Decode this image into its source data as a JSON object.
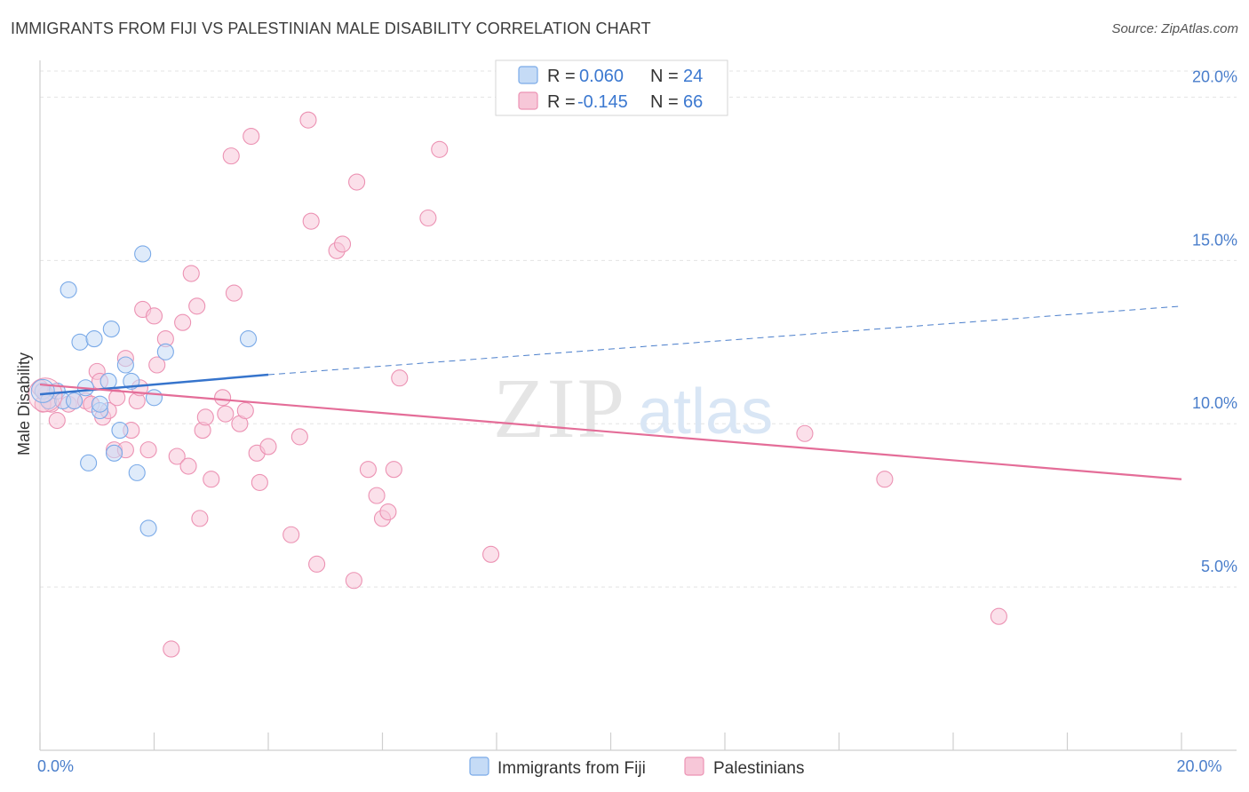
{
  "title": "IMMIGRANTS FROM FIJI VS PALESTINIAN MALE DISABILITY CORRELATION CHART",
  "source": "Source: ZipAtlas.com",
  "chart_data": {
    "type": "scatter",
    "title": "IMMIGRANTS FROM FIJI VS PALESTINIAN MALE DISABILITY CORRELATION CHART",
    "xlabel": "",
    "ylabel": "Male Disability",
    "xlim": [
      0,
      20
    ],
    "ylim": [
      0,
      20.8
    ],
    "x_tick_labels": [
      {
        "value": 0,
        "label": "0.0%"
      },
      {
        "value": 20,
        "label": "20.0%"
      }
    ],
    "x_minor_ticks": [
      0,
      2,
      4,
      6,
      8,
      10,
      12,
      14,
      16,
      18,
      20
    ],
    "y_ticks": [
      {
        "value": 5,
        "label": "5.0%"
      },
      {
        "value": 10,
        "label": "10.0%"
      },
      {
        "value": 15,
        "label": "15.0%"
      },
      {
        "value": 20,
        "label": "20.0%"
      }
    ],
    "legend": [
      {
        "series": "Immigrants from Fiji",
        "r_label": "R =",
        "r_value": "0.060",
        "n_label": "N =",
        "n_value": "24"
      },
      {
        "series": "Palestinians",
        "r_label": "R =",
        "r_value": "-0.145",
        "n_label": "N =",
        "n_value": "66"
      }
    ],
    "series": [
      {
        "name": "Immigrants from Fiji",
        "color": "#7aaae8",
        "fill": "#c5dbf6",
        "trend": {
          "x0": 0,
          "y0": 10.9,
          "x1": 4,
          "y1": 11.5,
          "dash_x1": 20,
          "dash_y1": 13.6
        },
        "points": [
          [
            0.05,
            11.0
          ],
          [
            0.15,
            10.7
          ],
          [
            0.3,
            11.0
          ],
          [
            0.4,
            10.7
          ],
          [
            0.5,
            14.1
          ],
          [
            0.7,
            12.5
          ],
          [
            0.8,
            11.1
          ],
          [
            0.85,
            8.8
          ],
          [
            0.95,
            12.6
          ],
          [
            1.05,
            10.4
          ],
          [
            1.2,
            11.3
          ],
          [
            1.25,
            12.9
          ],
          [
            1.3,
            9.1
          ],
          [
            1.4,
            9.8
          ],
          [
            1.5,
            11.8
          ],
          [
            1.6,
            11.3
          ],
          [
            1.7,
            8.5
          ],
          [
            1.8,
            15.2
          ],
          [
            1.9,
            6.8
          ],
          [
            2.0,
            10.8
          ],
          [
            2.2,
            12.2
          ],
          [
            3.65,
            12.6
          ],
          [
            0.6,
            10.7
          ],
          [
            1.05,
            10.6
          ]
        ]
      },
      {
        "name": "Palestinians",
        "color": "#ec92b3",
        "fill": "#f7c7d8",
        "trend": {
          "x0": 0,
          "y0": 11.2,
          "x1": 20,
          "y1": 8.3
        },
        "points": [
          [
            0.1,
            10.9
          ],
          [
            0.2,
            10.6
          ],
          [
            0.3,
            10.1
          ],
          [
            0.5,
            10.6
          ],
          [
            0.6,
            10.7
          ],
          [
            0.8,
            10.7
          ],
          [
            0.9,
            10.6
          ],
          [
            1.0,
            11.6
          ],
          [
            1.05,
            11.3
          ],
          [
            1.1,
            10.2
          ],
          [
            1.2,
            10.4
          ],
          [
            1.3,
            9.2
          ],
          [
            1.35,
            10.8
          ],
          [
            1.5,
            9.2
          ],
          [
            1.5,
            12.0
          ],
          [
            1.6,
            9.8
          ],
          [
            1.7,
            10.7
          ],
          [
            1.75,
            11.1
          ],
          [
            1.8,
            13.5
          ],
          [
            1.9,
            9.2
          ],
          [
            2.0,
            13.3
          ],
          [
            2.05,
            11.8
          ],
          [
            2.2,
            12.6
          ],
          [
            2.3,
            3.1
          ],
          [
            2.4,
            9.0
          ],
          [
            2.5,
            13.1
          ],
          [
            2.6,
            8.7
          ],
          [
            2.65,
            14.6
          ],
          [
            2.75,
            13.6
          ],
          [
            2.8,
            7.1
          ],
          [
            2.85,
            9.8
          ],
          [
            2.9,
            10.2
          ],
          [
            3.0,
            8.3
          ],
          [
            3.2,
            10.8
          ],
          [
            3.25,
            10.3
          ],
          [
            3.35,
            18.2
          ],
          [
            3.4,
            14.0
          ],
          [
            3.5,
            10.0
          ],
          [
            3.6,
            10.4
          ],
          [
            3.7,
            18.8
          ],
          [
            3.8,
            9.1
          ],
          [
            3.85,
            8.2
          ],
          [
            4.0,
            9.3
          ],
          [
            4.4,
            6.6
          ],
          [
            4.55,
            9.6
          ],
          [
            4.7,
            19.3
          ],
          [
            4.75,
            16.2
          ],
          [
            4.85,
            5.7
          ],
          [
            5.2,
            15.3
          ],
          [
            5.3,
            15.5
          ],
          [
            5.5,
            5.2
          ],
          [
            5.55,
            17.4
          ],
          [
            5.75,
            8.6
          ],
          [
            5.9,
            7.8
          ],
          [
            6.0,
            7.1
          ],
          [
            6.1,
            7.3
          ],
          [
            6.2,
            8.6
          ],
          [
            6.3,
            11.4
          ],
          [
            6.8,
            16.3
          ],
          [
            7.0,
            18.4
          ],
          [
            7.9,
            6.0
          ],
          [
            13.4,
            9.7
          ],
          [
            14.8,
            8.3
          ],
          [
            16.8,
            4.1
          ],
          [
            0.0,
            11.1
          ],
          [
            0.05,
            10.6
          ]
        ]
      }
    ]
  }
}
